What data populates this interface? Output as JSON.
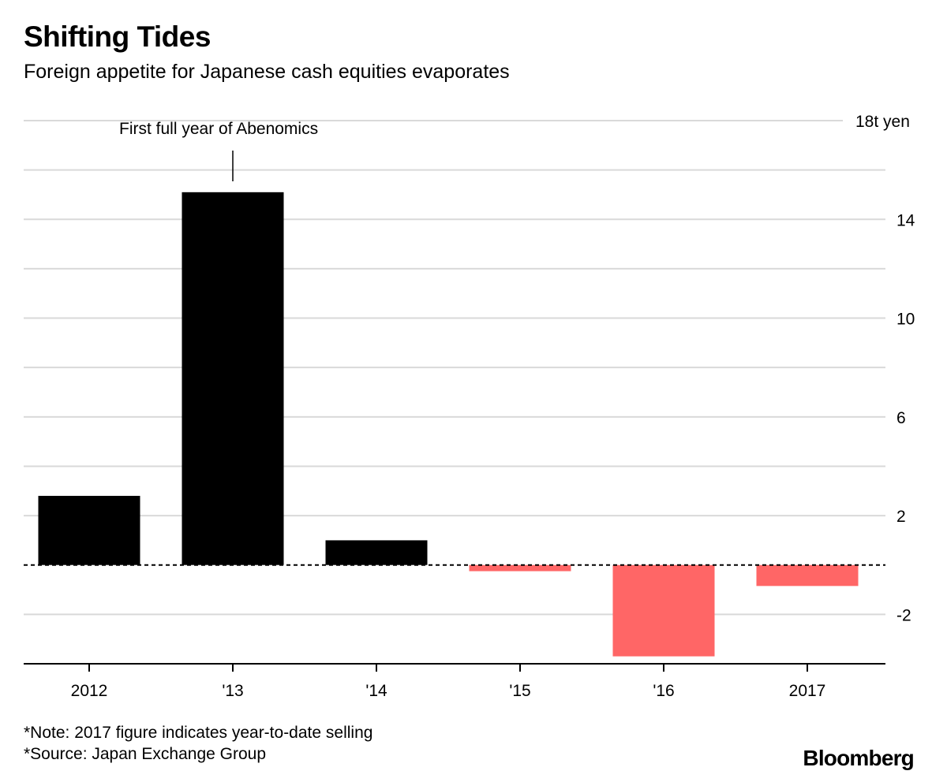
{
  "header": {
    "title": "Shifting Tides",
    "subtitle": "Foreign appetite for Japanese cash equities evaporates"
  },
  "chart_data": {
    "type": "bar",
    "categories": [
      "2012",
      "'13",
      "'14",
      "'15",
      "'16",
      "2017"
    ],
    "values": [
      2.8,
      15.1,
      1.0,
      -0.25,
      -3.7,
      -0.85
    ],
    "unit_label": "18t yen",
    "ylim": [
      -4,
      18
    ],
    "yticks": [
      18,
      14,
      10,
      6,
      2,
      -2
    ],
    "gridlines": [
      18,
      16,
      14,
      12,
      10,
      8,
      6,
      4,
      2,
      -2
    ],
    "ytick_labels": [
      "18t yen",
      "14",
      "10",
      "6",
      "2",
      "-2"
    ],
    "annotation": {
      "text": "First full year of Abenomics",
      "category_index": 1
    },
    "colors": {
      "positive": "#000000",
      "negative": "#ff6666",
      "grid": "#d9d9d9",
      "axis": "#000000"
    }
  },
  "footer": {
    "note": "*Note: 2017 figure indicates year-to-date selling",
    "source": "*Source: Japan Exchange Group",
    "brand": "Bloomberg"
  }
}
